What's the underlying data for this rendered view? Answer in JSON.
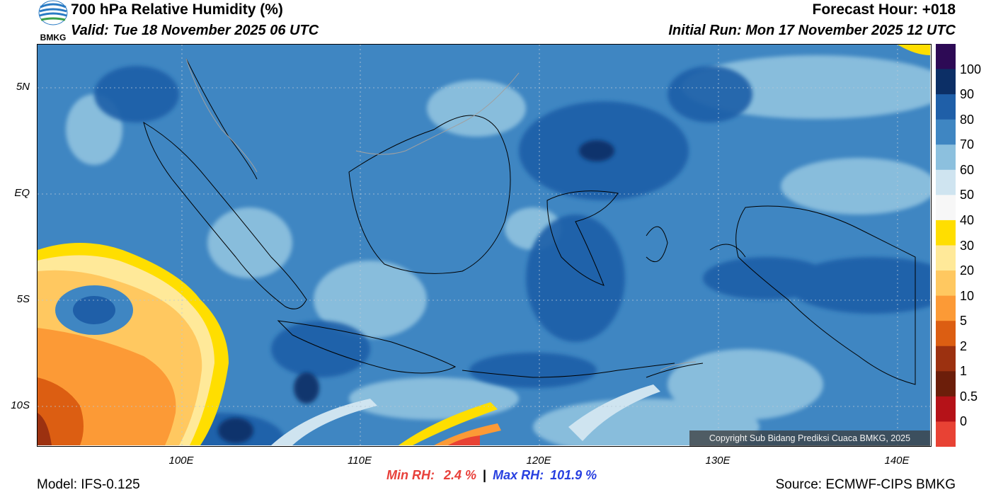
{
  "header": {
    "title": "700 hPa Relative Humidity (%)",
    "valid": "Valid: Tue 18 November 2025 06 UTC",
    "forecast_hour": "Forecast Hour: +018",
    "initial_run": "Initial Run: Mon 17 November 2025 12 UTC"
  },
  "logo": {
    "text": "BMKG"
  },
  "axes": {
    "lat_labels": [
      "5N",
      "EQ",
      "5S",
      "10S"
    ],
    "lon_labels": [
      "100E",
      "110E",
      "120E",
      "130E",
      "140E"
    ]
  },
  "colorbar": {
    "labels": [
      "100",
      "90",
      "80",
      "70",
      "60",
      "50",
      "40",
      "30",
      "20",
      "10",
      "5",
      "2",
      "1",
      "0.5",
      "0"
    ],
    "colors": [
      "#2d0a55",
      "#0c2f66",
      "#1f5fa8",
      "#3f86c2",
      "#8cc0de",
      "#cfe4f0",
      "#f7f7f7",
      "#ffde00",
      "#ffe999",
      "#ffc860",
      "#fc9a36",
      "#dc5e12",
      "#9c3110",
      "#6c1e0a",
      "#b51218",
      "#e84234"
    ]
  },
  "stats": {
    "min_label": "Min RH:",
    "min_value": "2.4 %",
    "separator": "|",
    "max_label": "Max RH:",
    "max_value": "101.9 %"
  },
  "footer": {
    "model": "Model: IFS-0.125",
    "source": "Source: ECMWF-CIPS BMKG",
    "copyright": "Copyright Sub Bidang Prediksi Cuaca BMKG, 2025"
  }
}
